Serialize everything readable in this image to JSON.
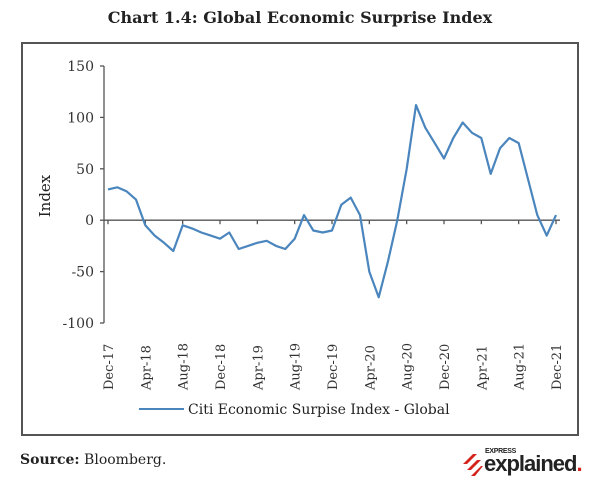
{
  "title": "Chart 1.4: Global Economic Surprise Index",
  "source_label": "Source:",
  "source_text": " Bloomberg.",
  "logo": {
    "small": "EXPRESS",
    "big": "explained",
    "dot": ".",
    "accent": "#d3231c"
  },
  "colors": {
    "line": "#4a86bd",
    "axis": "#555555"
  },
  "chart_data": {
    "type": "line",
    "title": "Chart 1.4: Global Economic Surprise Index",
    "xlabel": "",
    "ylabel": "Index",
    "ylim": [
      -100,
      150
    ],
    "yticks": [
      150,
      100,
      50,
      0,
      -50,
      -100
    ],
    "ytick_labels": [
      "150",
      "100",
      "50",
      "0",
      "-50",
      "-100"
    ],
    "xtick_labels": [
      "Dec-17",
      "Apr-18",
      "Aug-18",
      "Dec-18",
      "Apr-19",
      "Aug-19",
      "Dec-19",
      "Apr-20",
      "Aug-20",
      "Dec-20",
      "Apr-21",
      "Aug-21",
      "Dec-21"
    ],
    "grid": false,
    "legend_position": "bottom",
    "series": [
      {
        "name": "Citi Economic Surpise Index - Global",
        "x": [
          "Dec-17",
          "Jan-18",
          "Feb-18",
          "Mar-18",
          "Apr-18",
          "May-18",
          "Jun-18",
          "Jul-18",
          "Aug-18",
          "Sep-18",
          "Oct-18",
          "Nov-18",
          "Dec-18",
          "Jan-19",
          "Feb-19",
          "Mar-19",
          "Apr-19",
          "May-19",
          "Jun-19",
          "Jul-19",
          "Aug-19",
          "Sep-19",
          "Oct-19",
          "Nov-19",
          "Dec-19",
          "Jan-20",
          "Feb-20",
          "Mar-20",
          "Apr-20",
          "May-20",
          "Jun-20",
          "Jul-20",
          "Aug-20",
          "Sep-20",
          "Oct-20",
          "Nov-20",
          "Dec-20",
          "Jan-21",
          "Feb-21",
          "Mar-21",
          "Apr-21",
          "May-21",
          "Jun-21",
          "Jul-21",
          "Aug-21",
          "Sep-21",
          "Oct-21",
          "Nov-21",
          "Dec-21"
        ],
        "values": [
          30,
          32,
          28,
          20,
          -5,
          -15,
          -22,
          -30,
          -5,
          -8,
          -12,
          -15,
          -18,
          -12,
          -28,
          -25,
          -22,
          -20,
          -25,
          -28,
          -18,
          5,
          -10,
          -12,
          -10,
          15,
          22,
          5,
          -50,
          -75,
          -40,
          0,
          50,
          112,
          90,
          75,
          60,
          80,
          95,
          85,
          80,
          45,
          70,
          80,
          75,
          40,
          5,
          -15,
          5
        ]
      }
    ]
  }
}
